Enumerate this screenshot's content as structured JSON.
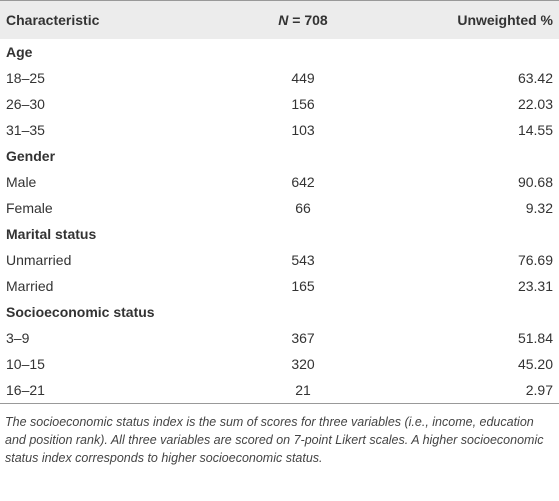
{
  "table": {
    "header": [
      "Characteristic",
      {
        "var": "N",
        "rest": "= 708"
      },
      "Unweighted %"
    ],
    "sections": [
      {
        "title": "Age",
        "rows": [
          [
            "18–25",
            "449",
            "63.42"
          ],
          [
            "26–30",
            "156",
            "22.03"
          ],
          [
            "31–35",
            "103",
            "14.55"
          ]
        ]
      },
      {
        "title": "Gender",
        "rows": [
          [
            "Male",
            "642",
            "90.68"
          ],
          [
            "Female",
            "66",
            "9.32"
          ]
        ]
      },
      {
        "title": "Marital status",
        "rows": [
          [
            "Unmarried",
            "543",
            "76.69"
          ],
          [
            "Married",
            "165",
            "23.31"
          ]
        ]
      },
      {
        "title": "Socioeconomic status",
        "rows": [
          [
            "3–9",
            "367",
            "51.84"
          ],
          [
            "10–15",
            "320",
            "45.20"
          ],
          [
            "16–21",
            "21",
            "2.97"
          ]
        ]
      }
    ],
    "footnote": "The socioeconomic status index is the sum of scores for three variables (i.e., income, education and position rank). All three variables are scored on 7-point Likert scales. A higher socioeconomic status index corresponds to higher socioeconomic status."
  }
}
